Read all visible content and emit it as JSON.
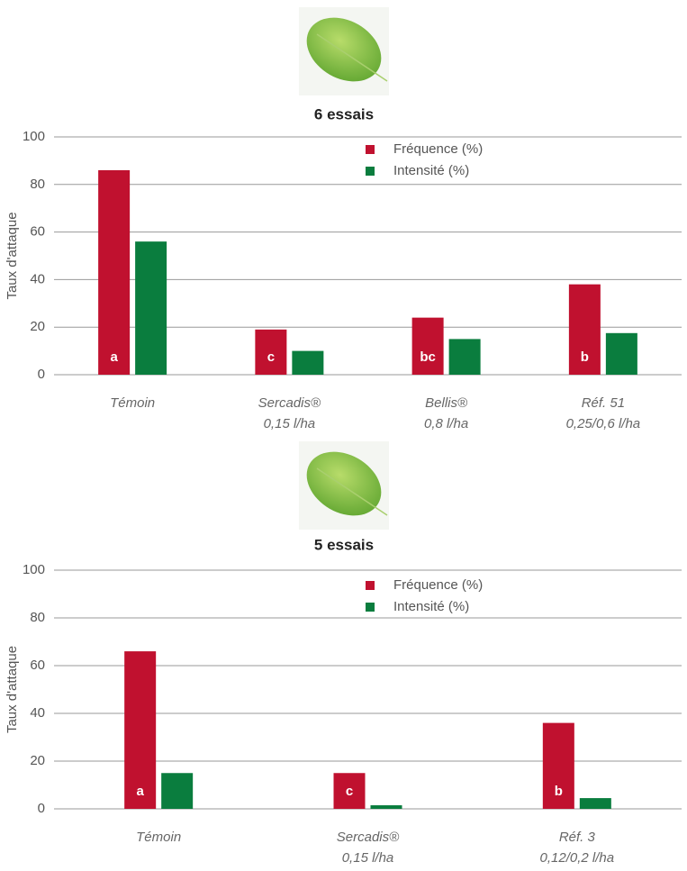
{
  "chart_data": [
    {
      "type": "bar",
      "title": "6 essais",
      "ylabel": "Taux d'attaque",
      "categories": [
        [
          "Témoin"
        ],
        [
          "Sercadis®",
          "0,15 l/ha"
        ],
        [
          "Bellis®",
          "0,8 l/ha"
        ],
        [
          "Réf. 51",
          "0,25/0,6 l/ha"
        ]
      ],
      "series": [
        {
          "name": "Fréquence (%)",
          "color": "#c0112f",
          "values": [
            86,
            19,
            24,
            38
          ]
        },
        {
          "name": "Intensité (%)",
          "color": "#0a7d3e",
          "values": [
            56,
            10,
            15,
            17.5
          ]
        }
      ],
      "letters": [
        "a",
        "c",
        "bc",
        "b"
      ],
      "ylim": [
        0,
        100
      ],
      "yticks": [
        0,
        20,
        40,
        60,
        80,
        100
      ],
      "grid": true,
      "legend": "top-center"
    },
    {
      "type": "bar",
      "title": "5 essais",
      "ylabel": "Taux d'attaque",
      "categories": [
        [
          "Témoin"
        ],
        [
          "Sercadis®",
          "0,15 l/ha"
        ],
        [
          "Réf. 3",
          "0,12/0,2 l/ha"
        ]
      ],
      "series": [
        {
          "name": "Fréquence (%)",
          "color": "#c0112f",
          "values": [
            66,
            15,
            36
          ]
        },
        {
          "name": "Intensité (%)",
          "color": "#0a7d3e",
          "values": [
            15,
            1.5,
            4.5
          ]
        }
      ],
      "letters": [
        "a",
        "c",
        "b"
      ],
      "ylim": [
        0,
        100
      ],
      "yticks": [
        0,
        20,
        40,
        60,
        80,
        100
      ],
      "grid": true,
      "legend": "top-center"
    }
  ]
}
